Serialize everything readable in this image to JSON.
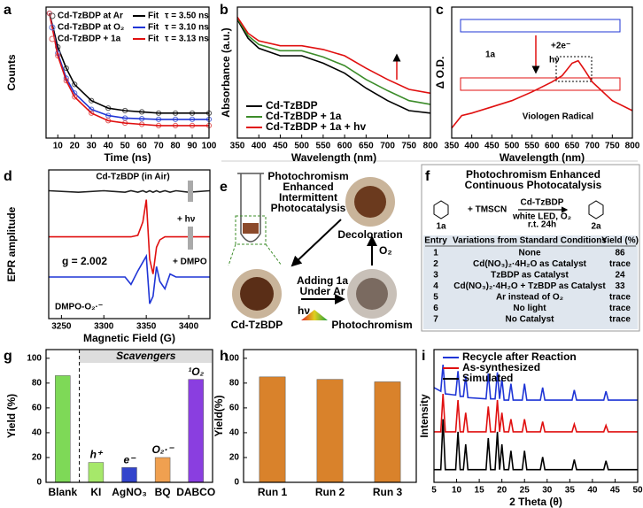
{
  "chart_data": [
    {
      "type": "line",
      "label": "a",
      "xlabel": "Time (ns)",
      "ylabel": "Counts",
      "x": [
        5,
        10,
        15,
        20,
        30,
        40,
        50,
        60,
        70,
        80,
        90,
        100
      ],
      "xlim": [
        3,
        100
      ],
      "xticks": [
        10,
        20,
        30,
        40,
        50,
        60,
        70,
        80,
        90,
        100
      ],
      "ylim": [
        0,
        1.05
      ],
      "series": [
        {
          "name": "Cd-TzBDP at Ar",
          "color": "#555555",
          "style": "markers",
          "values": [
            1.0,
            0.73,
            0.56,
            0.43,
            0.3,
            0.24,
            0.22,
            0.21,
            0.2,
            0.2,
            0.2,
            0.2
          ]
        },
        {
          "name": "Fit",
          "color": "#000000",
          "style": "line",
          "values": [
            1.0,
            0.73,
            0.56,
            0.43,
            0.3,
            0.24,
            0.22,
            0.21,
            0.2,
            0.2,
            0.2,
            0.2
          ]
        },
        {
          "name": "Cd-TzBDP at O₂",
          "color": "#5b6fd6",
          "style": "markers",
          "values": [
            1.0,
            0.68,
            0.48,
            0.36,
            0.23,
            0.18,
            0.16,
            0.155,
            0.15,
            0.15,
            0.15,
            0.15
          ]
        },
        {
          "name": "Fit",
          "color": "#1f35d6",
          "style": "line",
          "values": [
            1.0,
            0.68,
            0.48,
            0.36,
            0.23,
            0.18,
            0.16,
            0.155,
            0.15,
            0.15,
            0.15,
            0.15
          ]
        },
        {
          "name": "Cd-TzBDP + 1a",
          "color": "#e06060",
          "style": "markers",
          "values": [
            1.0,
            0.66,
            0.46,
            0.33,
            0.2,
            0.14,
            0.12,
            0.11,
            0.1,
            0.1,
            0.1,
            0.1
          ]
        },
        {
          "name": "Fit",
          "color": "#e01010",
          "style": "line",
          "values": [
            1.0,
            0.66,
            0.46,
            0.33,
            0.2,
            0.14,
            0.12,
            0.11,
            0.1,
            0.1,
            0.1,
            0.1
          ]
        }
      ],
      "tau_labels": [
        "τ = 3.50 ns",
        "τ = 3.10 ns",
        "τ = 3.13 ns"
      ]
    },
    {
      "type": "line",
      "label": "b",
      "xlabel": "Wavelength (nm)",
      "ylabel": "Absorbance (a.u.)",
      "legend": "lower left",
      "x": [
        350,
        375,
        400,
        450,
        500,
        550,
        600,
        650,
        700,
        750,
        800
      ],
      "xlim": [
        350,
        800
      ],
      "xticks": [
        350,
        400,
        450,
        500,
        550,
        600,
        650,
        700,
        750,
        800
      ],
      "ylim": [
        0,
        1.05
      ],
      "series": [
        {
          "name": "Cd-TzBDP",
          "color": "#000000",
          "style": "line",
          "values": [
            0.95,
            0.8,
            0.72,
            0.66,
            0.66,
            0.6,
            0.52,
            0.4,
            0.3,
            0.22,
            0.2
          ]
        },
        {
          "name": "Cd-TzBDP + 1a",
          "color": "#3c8c2a",
          "style": "line",
          "values": [
            0.96,
            0.82,
            0.75,
            0.7,
            0.7,
            0.65,
            0.58,
            0.47,
            0.38,
            0.3,
            0.27
          ]
        },
        {
          "name": "Cd-TzBDP + 1a + hv",
          "color": "#e01010",
          "style": "line",
          "values": [
            0.97,
            0.84,
            0.78,
            0.74,
            0.74,
            0.71,
            0.66,
            0.56,
            0.47,
            0.39,
            0.36
          ]
        }
      ]
    },
    {
      "type": "line",
      "label": "c",
      "xlabel": "Wavelength (nm)",
      "ylabel": "Δ O.D.",
      "x": [
        350,
        375,
        400,
        450,
        500,
        550,
        600,
        625,
        650,
        665,
        680,
        700,
        750,
        800
      ],
      "xlim": [
        350,
        800
      ],
      "xticks": [
        350,
        400,
        450,
        500,
        550,
        600,
        650,
        700,
        750,
        800
      ],
      "ylim": [
        0,
        1.05
      ],
      "series": [
        {
          "name": "Viologen Radical",
          "color": "#e01010",
          "style": "line",
          "values": [
            0.08,
            0.18,
            0.2,
            0.25,
            0.3,
            0.37,
            0.45,
            0.5,
            0.6,
            0.62,
            0.55,
            0.45,
            0.3,
            0.22
          ]
        }
      ],
      "annotations": [
        "1a",
        "+2e⁻",
        "hν"
      ]
    },
    {
      "type": "line",
      "label": "d",
      "xlabel": "Magnetic Field (G)",
      "ylabel": "EPR amplitude",
      "x": [
        3235,
        3270,
        3300,
        3325,
        3332,
        3340,
        3346,
        3350,
        3354,
        3358,
        3362,
        3366,
        3372,
        3378,
        3385,
        3400,
        3425
      ],
      "xlim": [
        3235,
        3425
      ],
      "xticks": [
        3250,
        3300,
        3350,
        3400
      ],
      "ylim": [
        0,
        10
      ],
      "series": [
        {
          "name": "Cd-TzBDP (in Air)",
          "color": "#222222",
          "style": "line",
          "values": [
            8.6,
            8.5,
            8.6,
            8.5,
            8.6,
            8.5,
            8.6,
            8.5,
            8.6,
            8.5,
            8.6,
            8.5,
            8.6,
            8.5,
            8.6,
            8.5,
            8.6
          ]
        },
        {
          "name": "+ hν",
          "color": "#e01010",
          "style": "line",
          "values": [
            5.5,
            5.5,
            5.5,
            5.5,
            5.5,
            5.6,
            6.5,
            8,
            4,
            3,
            4.8,
            5.3,
            5.5,
            5.5,
            5.5,
            5.5,
            5.5
          ]
        },
        {
          "name": "+ DMPO",
          "color": "#1f35d6",
          "style": "line",
          "values": [
            2.8,
            2.8,
            2.8,
            2.8,
            2.3,
            3.2,
            3.8,
            4.2,
            1.0,
            1.5,
            3.5,
            2.5,
            2.0,
            3.0,
            2.8,
            2.8,
            2.8
          ]
        }
      ],
      "annotations": [
        "g = 2.002",
        "DMPO-O₂·⁻"
      ]
    },
    {
      "type": "bar",
      "label": "g",
      "ylabel": "Yield (%)",
      "group_label": "Scavengers",
      "categories": [
        "Blank",
        "KI",
        "AgNO₃",
        "BQ",
        "DABCO"
      ],
      "values": [
        86,
        16,
        12,
        20,
        83
      ],
      "colors": [
        "#7ed957",
        "#a6e86a",
        "#3344cc",
        "#f0a050",
        "#8a3ee0"
      ],
      "ylim": [
        0,
        107
      ],
      "yticks": [
        0,
        20,
        40,
        60,
        80,
        100
      ],
      "annotations": [
        "h⁺",
        "e⁻",
        "O₂·⁻",
        "¹O₂"
      ]
    },
    {
      "type": "bar",
      "label": "h",
      "ylabel": "Yield(%)",
      "categories": [
        "Run 1",
        "Run 2",
        "Run 3"
      ],
      "values": [
        85,
        83,
        81
      ],
      "colors": [
        "#d9822b",
        "#d9822b",
        "#d9822b"
      ],
      "ylim": [
        0,
        107
      ],
      "yticks": [
        0,
        20,
        40,
        60,
        80,
        100
      ]
    },
    {
      "type": "line",
      "label": "i",
      "xlabel": "2 Theta (θ)",
      "ylabel": "Intensity",
      "legend": "upper left",
      "x": [
        5,
        6.5,
        7,
        7.5,
        9.8,
        10.3,
        10.8,
        11.5,
        12,
        12.5,
        16.5,
        17,
        17.5,
        18.5,
        19,
        19.5,
        20,
        20.5,
        21.5,
        22,
        22.5,
        24.5,
        25,
        25.5,
        28.5,
        29,
        29.5,
        35.5,
        36,
        36.5,
        42.5,
        43,
        43.5,
        50
      ],
      "xlim": [
        5,
        50
      ],
      "xticks": [
        5,
        10,
        15,
        20,
        25,
        30,
        35,
        40,
        45,
        50
      ],
      "ylim": [
        0,
        10.5
      ],
      "series": [
        {
          "name": "Recycle after Reaction",
          "color": "#1f35d6",
          "style": "line",
          "values": [
            7.5,
            7.2,
            9.3,
            7,
            6.9,
            8.8,
            6.8,
            6.8,
            8.4,
            6.7,
            6.6,
            8.6,
            6.6,
            6.6,
            8.7,
            6.6,
            8.2,
            6.5,
            6.5,
            7.8,
            6.5,
            6.5,
            7.8,
            6.5,
            6.5,
            7.5,
            6.5,
            6.5,
            7.3,
            6.5,
            6.5,
            7.2,
            6.5,
            6.5
          ]
        },
        {
          "name": "As-synthesized",
          "color": "#e01010",
          "style": "line",
          "values": [
            4,
            4,
            7,
            4,
            4,
            6.5,
            4,
            4,
            5.5,
            4,
            4,
            6,
            4,
            4,
            6.5,
            4,
            5.5,
            4,
            4,
            5,
            4,
            4,
            5,
            4,
            4,
            4.8,
            4,
            4,
            4.6,
            4,
            4,
            4.5,
            4,
            4
          ]
        },
        {
          "name": "Simulated",
          "color": "#000000",
          "style": "line",
          "values": [
            1,
            1,
            5,
            1,
            1,
            4,
            1,
            1,
            3,
            1,
            1,
            3.5,
            1,
            1,
            4,
            1,
            3,
            1,
            1,
            2.5,
            1,
            1,
            2.5,
            1,
            1,
            2,
            1,
            1,
            1.8,
            1,
            1,
            1.7,
            1,
            1
          ]
        }
      ]
    }
  ],
  "panel_e": {
    "label": "e",
    "title_lines": [
      "Photochromism",
      "Enhanced",
      "Intermittent",
      "Photocatalysis"
    ],
    "steps": [
      "Decoloration",
      "O₂",
      "Adding 1a",
      "Under Ar",
      "hν",
      "Cd-TzBDP",
      "Photochromism"
    ]
  },
  "panel_f": {
    "label": "f",
    "title_lines": [
      "Photochromism Enhanced",
      "Continuous Photocatalysis"
    ],
    "reaction": {
      "reactant": "1a",
      "reagent": "+ TMSCN",
      "catalyst": "Cd-TzBDP",
      "conditions": [
        "white LED, O₂",
        "r.t.  24h"
      ],
      "product": "2a"
    },
    "table": {
      "header": [
        "Entry",
        "Variations from Standard Conditions",
        "Yield (%)"
      ],
      "rows": [
        [
          1,
          "None",
          86
        ],
        [
          2,
          "Cd(NO₃)₂·4H₂O as Catalyst",
          "trace"
        ],
        [
          3,
          "TzBDP as Catalyst",
          24
        ],
        [
          4,
          "Cd(NO₃)₂·4H₂O + TzBDP as Catalyst",
          33
        ],
        [
          5,
          "Ar instead of O₂",
          "trace"
        ],
        [
          6,
          "No light",
          "trace"
        ],
        [
          7,
          "No Catalyst",
          "trace"
        ]
      ]
    }
  }
}
